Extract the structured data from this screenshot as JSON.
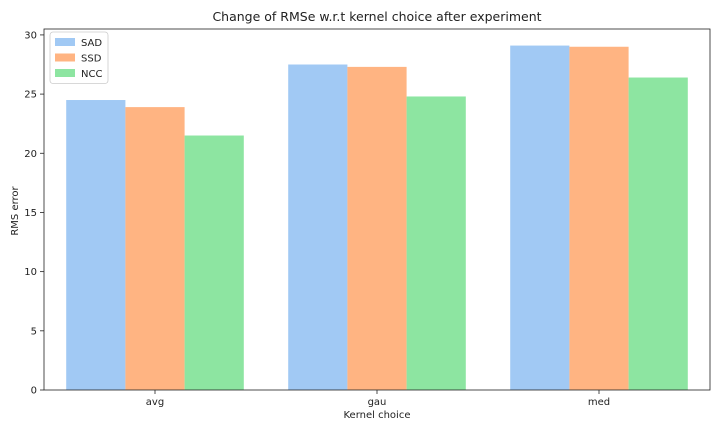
{
  "chart_data": {
    "type": "bar",
    "title": "Change of RMSe w.r.t kernel choice after experiment",
    "xlabel": "Kernel choice",
    "ylabel": "RMS error",
    "categories": [
      "avg",
      "gau",
      "med"
    ],
    "ylim": [
      0,
      30.5
    ],
    "yticks": [
      0,
      5,
      10,
      15,
      20,
      25,
      30
    ],
    "grid": false,
    "legend_position": "top-left",
    "series": [
      {
        "name": "SAD",
        "color": "#a1c9f4",
        "values": [
          24.5,
          27.5,
          29.1
        ]
      },
      {
        "name": "SSD",
        "color": "#ffb482",
        "values": [
          23.9,
          27.3,
          29.0
        ]
      },
      {
        "name": "NCC",
        "color": "#8de5a1",
        "values": [
          21.5,
          24.8,
          26.4
        ]
      }
    ]
  }
}
